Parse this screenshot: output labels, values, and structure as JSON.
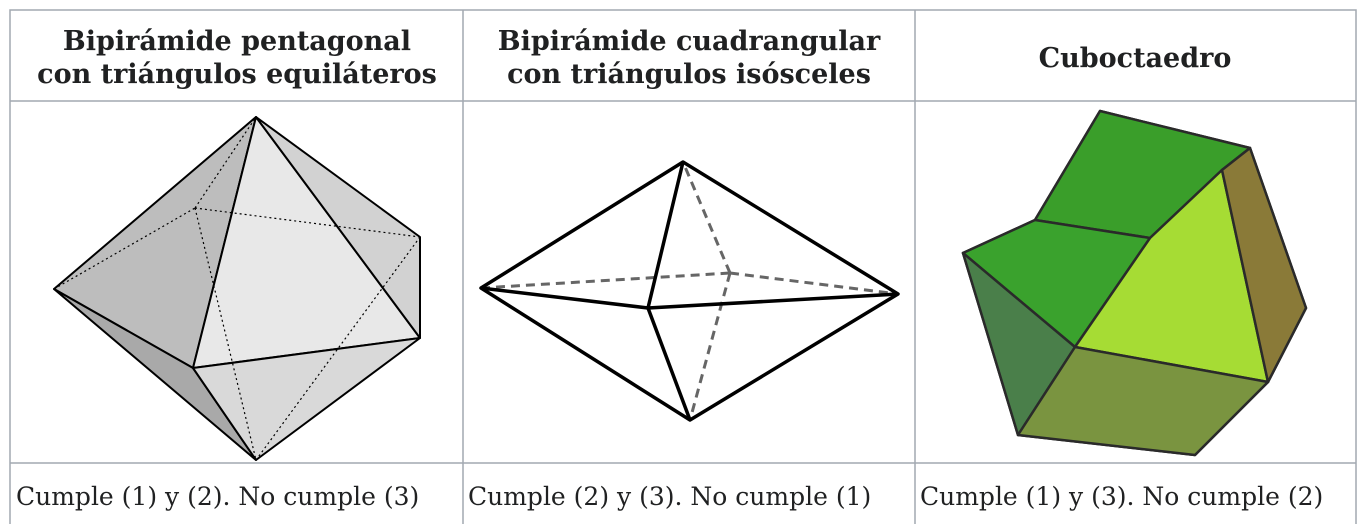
{
  "table": {
    "headers": [
      [
        "Bipirámide pentagonal",
        "con triángulos equiláteros"
      ],
      [
        "Bipirámide cuadrangular",
        "con triángulos isósceles"
      ],
      [
        "Cuboctaedro"
      ]
    ],
    "captions": [
      "Cumple (1) y (2). No cumple (3)",
      "Cumple (2) y (3). No cumple (1)",
      "Cumple (1) y (3). No cumple (2)"
    ]
  }
}
